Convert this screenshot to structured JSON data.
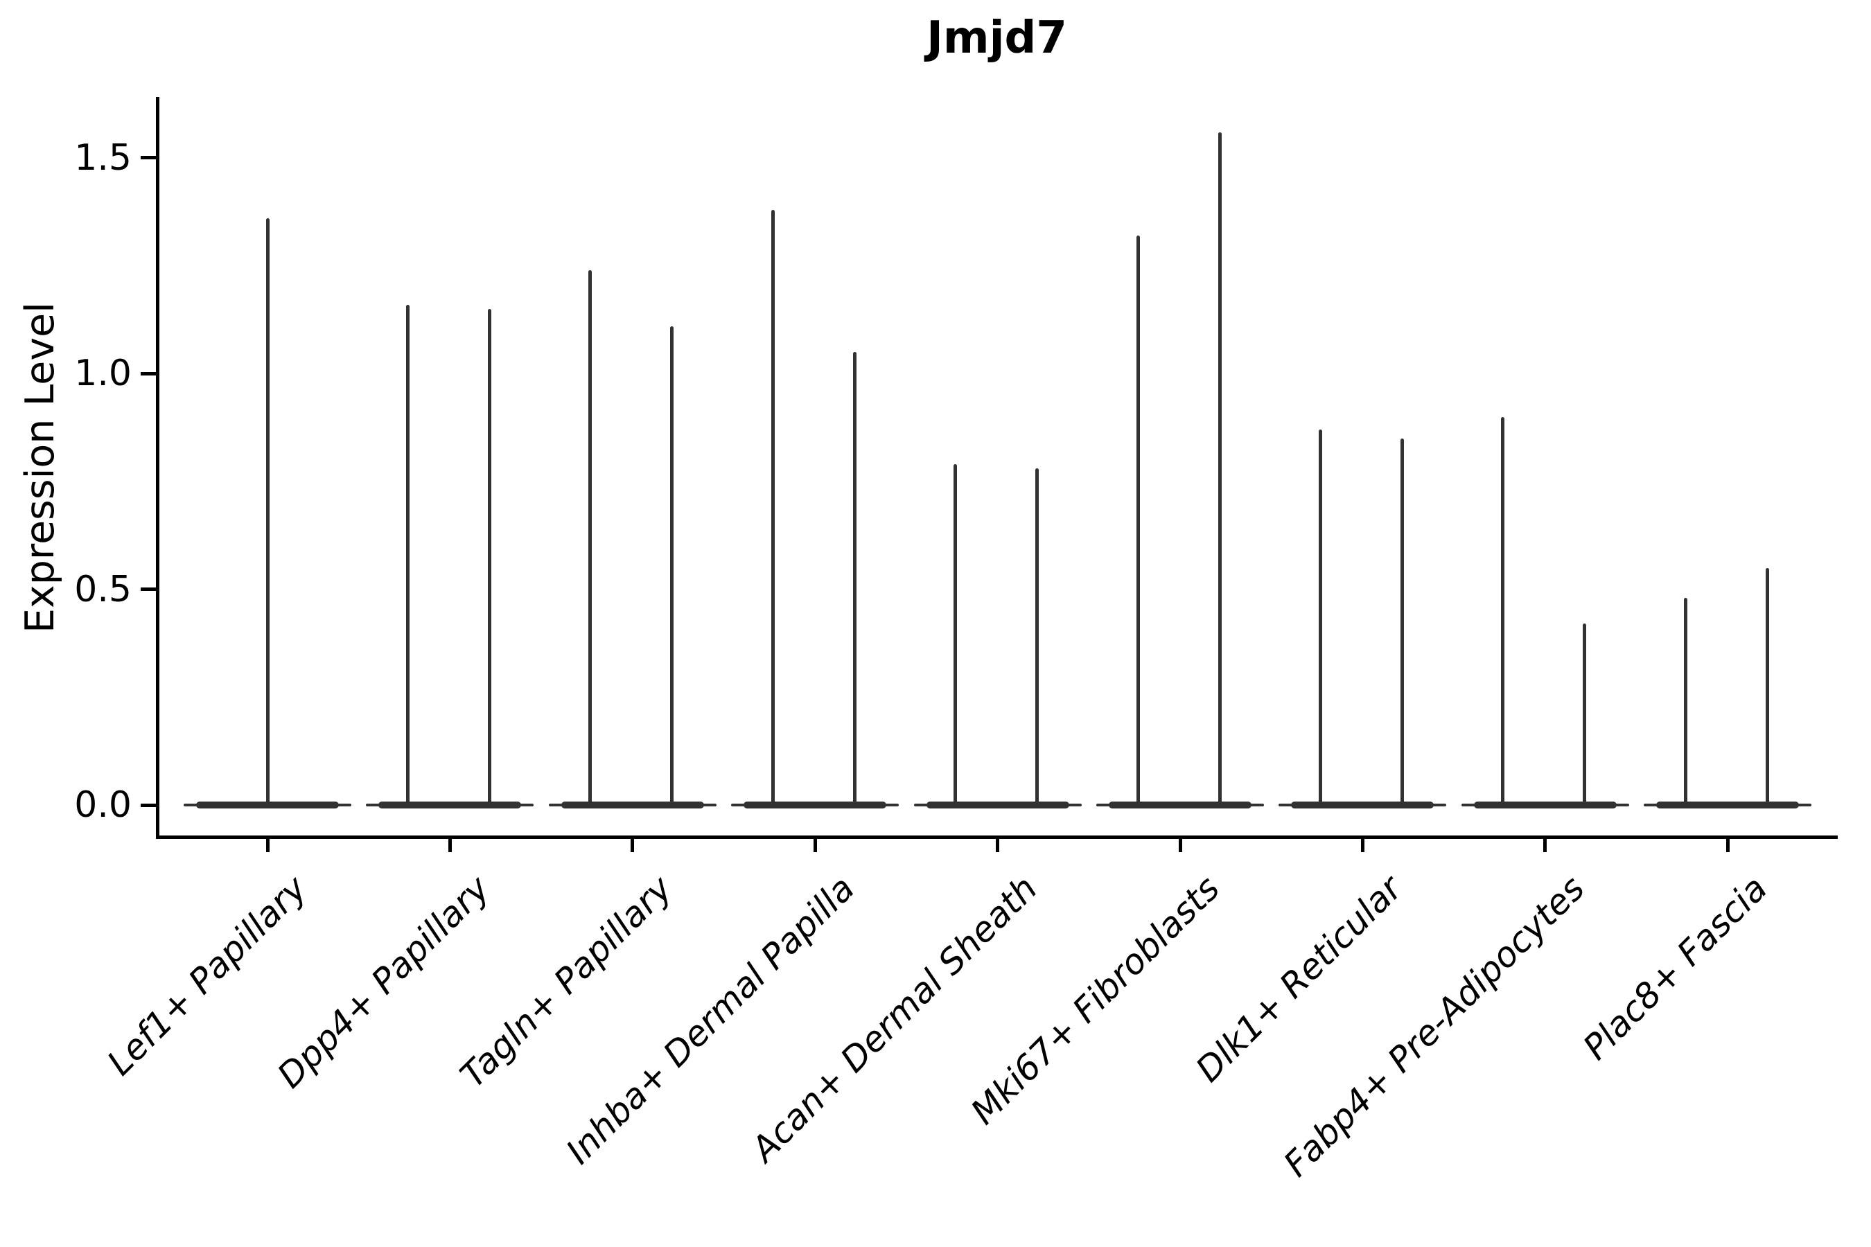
{
  "chart_data": {
    "type": "violin",
    "title": "Jmjd7",
    "ylabel": "Expression Level",
    "xlabel": "",
    "ylim": [
      -0.07,
      1.64
    ],
    "yticks": [
      0,
      0.5,
      1,
      1.5
    ],
    "ytick_labels": [
      "0.0",
      "0.5",
      "1.0",
      "1.5"
    ],
    "grid": false,
    "legend_position": "none",
    "violin_color": "#323232",
    "axis_color": "#000000",
    "background_color": "#ffffff",
    "categories": [
      "Lef1+ Papillary",
      "Dpp4+ Papillary",
      "Tagln+ Papillary",
      "Inhba+ Dermal Papilla",
      "Acan+ Dermal Sheath",
      "Mki67+ Fibroblasts",
      "Dlk1+ Reticular",
      "Fabp4+ Pre-Adipocytes",
      "Plac8+ Fascia"
    ],
    "series": [
      {
        "category": "Lef1+ Papillary",
        "violins": [
          {
            "position": "center",
            "max_expression": 1.36
          }
        ]
      },
      {
        "category": "Dpp4+ Papillary",
        "violins": [
          {
            "position": "left",
            "max_expression": 1.16
          },
          {
            "position": "right",
            "max_expression": 1.15
          }
        ]
      },
      {
        "category": "Tagln+ Papillary",
        "violins": [
          {
            "position": "left",
            "max_expression": 1.24
          },
          {
            "position": "right",
            "max_expression": 1.11
          }
        ]
      },
      {
        "category": "Inhba+ Dermal Papilla",
        "violins": [
          {
            "position": "left",
            "max_expression": 1.38
          },
          {
            "position": "right",
            "max_expression": 1.05
          }
        ]
      },
      {
        "category": "Acan+ Dermal Sheath",
        "violins": [
          {
            "position": "left",
            "max_expression": 0.79
          },
          {
            "position": "right",
            "max_expression": 0.78
          }
        ]
      },
      {
        "category": "Mki67+ Fibroblasts",
        "violins": [
          {
            "position": "left",
            "max_expression": 1.32
          },
          {
            "position": "right",
            "max_expression": 1.56
          }
        ]
      },
      {
        "category": "Dlk1+ Reticular",
        "violins": [
          {
            "position": "left",
            "max_expression": 0.87
          },
          {
            "position": "right",
            "max_expression": 0.85
          }
        ]
      },
      {
        "category": "Fabp4+ Pre-Adipocytes",
        "violins": [
          {
            "position": "left",
            "max_expression": 0.9
          },
          {
            "position": "right",
            "max_expression": 0.42
          }
        ]
      },
      {
        "category": "Plac8+ Fascia",
        "violins": [
          {
            "position": "left",
            "max_expression": 0.48
          },
          {
            "position": "right",
            "max_expression": 0.55
          }
        ]
      }
    ],
    "baseline_value": 0.0
  }
}
